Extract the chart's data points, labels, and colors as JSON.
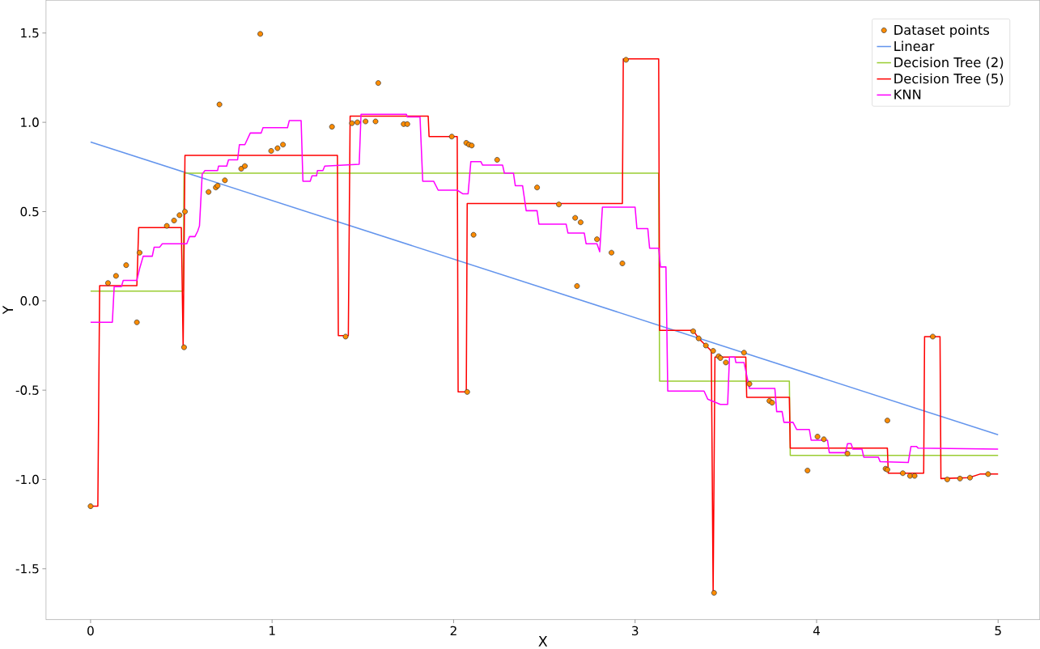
{
  "chart_data": {
    "type": "line",
    "xlabel": "X",
    "ylabel": "Y",
    "xlim": [
      -0.246,
      5.23
    ],
    "ylim": [
      -1.785,
      1.684
    ],
    "xticks": [
      0,
      1,
      2,
      3,
      4,
      5
    ],
    "yticks": [
      -1.5,
      {
        "value": -1,
        "label": "-1.0"
      },
      -0.5,
      {
        "value": 0,
        "label": "0.0"
      },
      0.5,
      {
        "value": 1,
        "label": "1.0"
      },
      1.5
    ],
    "legend": "top right",
    "grid": false,
    "series": [
      {
        "name": "Dataset points",
        "type": "scatter",
        "color": "#ff8c00",
        "x": [
          0,
          0.096,
          0.14,
          0.196,
          0.255,
          0.27,
          0.42,
          0.46,
          0.49,
          0.52,
          0.515,
          0.65,
          0.69,
          0.7,
          0.74,
          0.71,
          0.83,
          0.85,
          0.995,
          1.03,
          1.06,
          0.935,
          1.33,
          1.405,
          1.44,
          1.47,
          1.515,
          1.57,
          1.585,
          1.725,
          1.745,
          1.99,
          2.07,
          2.085,
          2.1,
          2.24,
          2.11,
          2.075,
          2.46,
          2.58,
          2.67,
          2.7,
          2.79,
          2.87,
          2.93,
          2.68,
          2.95,
          3.32,
          3.35,
          3.39,
          3.43,
          3.46,
          3.47,
          3.5,
          3.6,
          3.63,
          3.74,
          3.755,
          3.435,
          3.95,
          4.005,
          4.04,
          4.17,
          4.39,
          4.38,
          4.39,
          4.475,
          4.515,
          4.54,
          4.64,
          4.72,
          4.79,
          4.845,
          4.945
        ],
        "values": [
          -1.15,
          0.1,
          0.14,
          0.2,
          -0.12,
          0.27,
          0.42,
          0.45,
          0.48,
          0.5,
          -0.26,
          0.61,
          0.635,
          0.645,
          0.675,
          1.1,
          0.74,
          0.755,
          0.84,
          0.855,
          0.875,
          1.495,
          0.975,
          -0.2,
          0.995,
          1.0,
          1.005,
          1.005,
          1.22,
          0.99,
          0.99,
          0.92,
          0.885,
          0.875,
          0.87,
          0.79,
          0.37,
          -0.51,
          0.635,
          0.54,
          0.465,
          0.44,
          0.345,
          0.27,
          0.21,
          0.083,
          1.35,
          -0.17,
          -0.21,
          -0.25,
          -0.28,
          -0.31,
          -0.32,
          -0.345,
          -0.29,
          -0.465,
          -0.56,
          -0.57,
          -1.635,
          -0.95,
          -0.76,
          -0.775,
          -0.855,
          -0.67,
          -0.94,
          -0.945,
          -0.965,
          -0.98,
          -0.98,
          -0.2,
          -1.0,
          -0.995,
          -0.99,
          -0.97
        ]
      },
      {
        "name": "Linear",
        "type": "line",
        "color": "#6495ed",
        "x": [
          0,
          5
        ],
        "values": [
          0.89,
          -0.75
        ]
      },
      {
        "name": "Decision Tree (2)",
        "type": "line",
        "color": "#9acd32",
        "x": [
          0,
          0.51,
          0.515,
          3.13,
          3.135,
          3.85,
          3.855,
          5
        ],
        "values": [
          0.055,
          0.055,
          0.715,
          0.715,
          -0.45,
          -0.45,
          -0.865,
          -0.865
        ]
      },
      {
        "name": "Decision Tree (5)",
        "type": "line",
        "color": "#ff0000",
        "x": [
          0,
          0.04,
          0.05,
          0.255,
          0.265,
          0.5,
          0.51,
          0.52,
          1.36,
          1.365,
          1.42,
          1.43,
          1.86,
          1.865,
          2.02,
          2.025,
          2.07,
          2.075,
          2.93,
          2.935,
          3.13,
          3.135,
          3.32,
          3.35,
          3.39,
          3.42,
          3.43,
          3.44,
          3.61,
          3.615,
          3.85,
          3.855,
          4.39,
          4.395,
          4.59,
          4.595,
          4.68,
          4.685,
          4.84,
          4.9,
          5
        ],
        "values": [
          -1.15,
          -1.15,
          0.085,
          0.085,
          0.41,
          0.41,
          -0.26,
          0.815,
          0.815,
          -0.195,
          -0.195,
          1.035,
          1.035,
          0.92,
          0.92,
          -0.51,
          -0.51,
          0.545,
          0.545,
          1.355,
          1.355,
          -0.165,
          -0.165,
          -0.21,
          -0.25,
          -0.28,
          -1.635,
          -0.315,
          -0.315,
          -0.54,
          -0.54,
          -0.825,
          -0.825,
          -0.965,
          -0.965,
          -0.2,
          -0.2,
          -0.995,
          -0.99,
          -0.97,
          -0.97
        ]
      },
      {
        "name": "KNN",
        "type": "line",
        "color": "#ff00ff",
        "x": [
          0,
          0.12,
          0.13,
          0.17,
          0.18,
          0.255,
          0.27,
          0.29,
          0.34,
          0.35,
          0.38,
          0.395,
          0.53,
          0.545,
          0.575,
          0.59,
          0.6,
          0.615,
          0.63,
          0.7,
          0.705,
          0.75,
          0.76,
          0.81,
          0.82,
          0.85,
          0.88,
          0.94,
          0.95,
          1.085,
          1.095,
          1.16,
          1.17,
          1.21,
          1.22,
          1.245,
          1.25,
          1.28,
          1.29,
          1.48,
          1.49,
          1.74,
          1.745,
          1.815,
          1.83,
          1.89,
          1.915,
          2.02,
          2.05,
          2.08,
          2.095,
          2.15,
          2.16,
          2.27,
          2.28,
          2.33,
          2.34,
          2.38,
          2.4,
          2.46,
          2.47,
          2.62,
          2.63,
          2.72,
          2.73,
          2.79,
          2.805,
          2.82,
          3.0,
          3.01,
          3.07,
          3.08,
          3.13,
          3.14,
          3.17,
          3.18,
          3.38,
          3.4,
          3.47,
          3.51,
          3.52,
          3.55,
          3.555,
          3.6,
          3.63,
          3.77,
          3.78,
          3.81,
          3.82,
          3.87,
          3.89,
          3.96,
          3.97,
          4.06,
          4.07,
          4.16,
          4.17,
          4.19,
          4.2,
          4.25,
          4.26,
          4.34,
          4.35,
          4.505,
          4.52,
          4.55,
          4.56,
          5
        ],
        "values": [
          -0.12,
          -0.12,
          0.08,
          0.08,
          0.115,
          0.115,
          0.18,
          0.25,
          0.25,
          0.3,
          0.3,
          0.32,
          0.32,
          0.36,
          0.36,
          0.39,
          0.42,
          0.71,
          0.73,
          0.73,
          0.755,
          0.755,
          0.79,
          0.79,
          0.875,
          0.875,
          0.94,
          0.94,
          0.97,
          0.97,
          1.01,
          1.01,
          0.67,
          0.67,
          0.7,
          0.7,
          0.73,
          0.73,
          0.755,
          0.765,
          1.045,
          1.045,
          1.03,
          1.03,
          0.67,
          0.67,
          0.62,
          0.62,
          0.6,
          0.6,
          0.78,
          0.78,
          0.76,
          0.76,
          0.715,
          0.715,
          0.645,
          0.645,
          0.505,
          0.505,
          0.43,
          0.43,
          0.38,
          0.38,
          0.32,
          0.32,
          0.275,
          0.525,
          0.525,
          0.405,
          0.405,
          0.295,
          0.295,
          0.19,
          0.19,
          -0.505,
          -0.505,
          -0.55,
          -0.58,
          -0.58,
          -0.315,
          -0.315,
          -0.345,
          -0.345,
          -0.49,
          -0.49,
          -0.62,
          -0.62,
          -0.68,
          -0.68,
          -0.72,
          -0.72,
          -0.78,
          -0.78,
          -0.85,
          -0.85,
          -0.8,
          -0.8,
          -0.83,
          -0.83,
          -0.875,
          -0.875,
          -0.9,
          -0.905,
          -0.815,
          -0.815,
          -0.825,
          -0.83
        ]
      }
    ]
  }
}
